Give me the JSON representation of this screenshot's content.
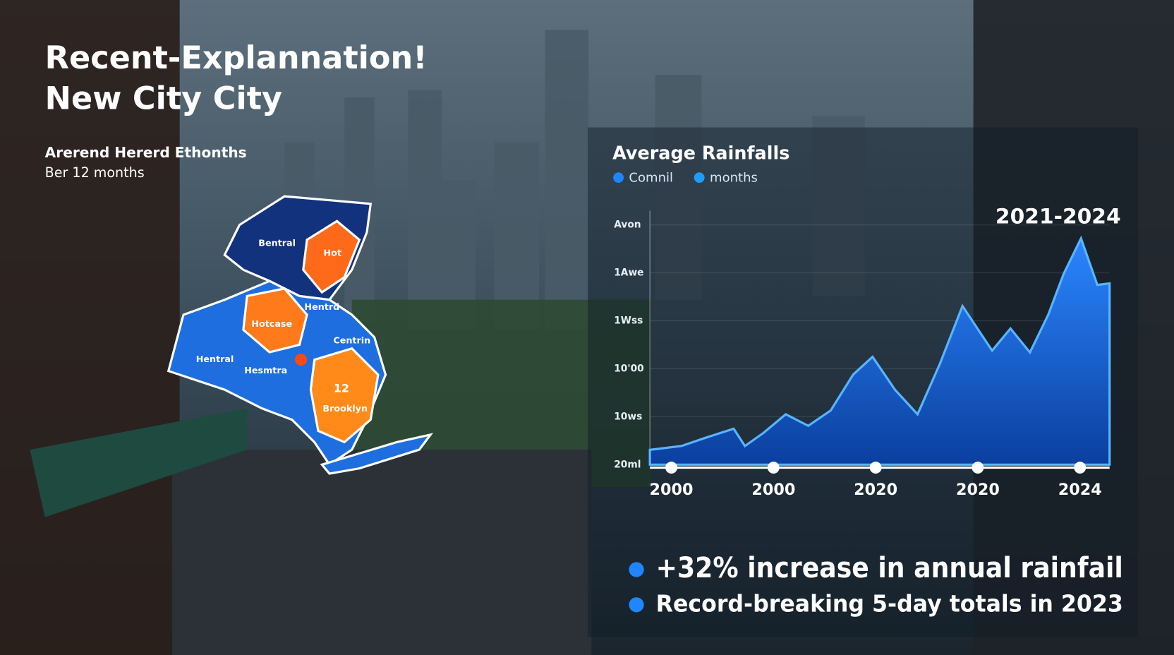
{
  "header": {
    "title": [
      "Recent-Explannation!",
      "New City City"
    ],
    "subtitle": [
      "Arerend Hererd Ethonths",
      "Ber 12 months"
    ]
  },
  "map": {
    "labels": [
      "Bentral",
      "Hot",
      "Hentrd",
      "Hotcase",
      "Centrin",
      "Hentral",
      "Hesmtra",
      "12",
      "Brooklyn"
    ]
  },
  "chart_data": {
    "type": "area",
    "title": "Average Rainfalls",
    "legend": [
      {
        "name": "Comnil",
        "color": "#1f86ff"
      },
      {
        "name": "months",
        "color": "#1f9bff"
      }
    ],
    "badge": "2021-2024",
    "color": "#1f6fe0",
    "line_color": "#5ab4ff",
    "x": [
      -0.21,
      0.1,
      0.32,
      0.61,
      0.72,
      0.9,
      1.12,
      1.34,
      1.56,
      1.78,
      1.97,
      2.19,
      2.41,
      2.63,
      2.85,
      3.14,
      3.32,
      3.51,
      3.69,
      3.84,
      4.01,
      4.17,
      4.29
    ],
    "values": [
      0.31,
      0.39,
      0.55,
      0.75,
      0.39,
      0.66,
      1.05,
      0.81,
      1.13,
      1.88,
      2.25,
      1.56,
      1.05,
      2.11,
      3.31,
      2.38,
      2.84,
      2.34,
      3.13,
      3.98,
      4.72,
      3.75,
      3.78
    ],
    "xlim": [
      -0.21,
      4.29
    ],
    "xticks": [
      {
        "value": 0,
        "label": "2000"
      },
      {
        "value": 1,
        "label": "2000"
      },
      {
        "value": 2,
        "label": "2020"
      },
      {
        "value": 3,
        "label": "2020"
      },
      {
        "value": 4,
        "label": "2024"
      }
    ],
    "ylim": [
      0,
      5.3
    ],
    "yticks": [
      {
        "value": 0,
        "label": "20ml"
      },
      {
        "value": 1,
        "label": "10ws"
      },
      {
        "value": 2,
        "label": "10'00"
      },
      {
        "value": 3,
        "label": "1Wss"
      },
      {
        "value": 4,
        "label": "1Awe"
      },
      {
        "value": 5,
        "label": "Avon"
      }
    ],
    "notes": [
      "+32% increase in annual rainfail",
      "Record-breaking 5-day totals in 2023"
    ]
  }
}
